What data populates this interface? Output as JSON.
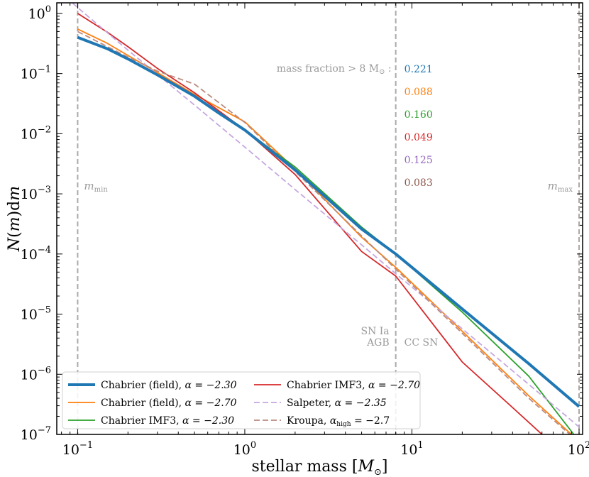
{
  "chart_data": {
    "type": "line",
    "xscale": "log",
    "yscale": "log",
    "xlim": [
      0.075,
      105
    ],
    "ylim": [
      1e-07,
      1.5
    ],
    "xlabel_main": "stellar mass [",
    "xlabel_symbol": "M",
    "xlabel_sub": "⊙",
    "xlabel_end": "]",
    "ylabel_parts": [
      "N",
      "(",
      "m",
      ")d",
      "m"
    ],
    "x_ticks": [
      {
        "value": 0.1,
        "base": "10",
        "exp": "−1"
      },
      {
        "value": 1,
        "base": "10",
        "exp": "0"
      },
      {
        "value": 10,
        "base": "10",
        "exp": "1"
      },
      {
        "value": 100,
        "base": "10",
        "exp": "2"
      }
    ],
    "y_ticks": [
      {
        "value": 1,
        "base": "10",
        "exp": "0"
      },
      {
        "value": 0.1,
        "base": "10",
        "exp": "−1"
      },
      {
        "value": 0.01,
        "base": "10",
        "exp": "−2"
      },
      {
        "value": 0.001,
        "base": "10",
        "exp": "−3"
      },
      {
        "value": 0.0001,
        "base": "10",
        "exp": "−4"
      },
      {
        "value": 1e-05,
        "base": "10",
        "exp": "−5"
      },
      {
        "value": 1e-06,
        "base": "10",
        "exp": "−6"
      },
      {
        "value": 1e-07,
        "base": "10",
        "exp": "−7"
      }
    ],
    "vlines": [
      {
        "x": 0.1,
        "color": "#aaaaaa"
      },
      {
        "x": 8,
        "color": "#aaaaaa"
      },
      {
        "x": 100,
        "color": "#aaaaaa"
      }
    ],
    "annotations": {
      "m_min": {
        "symbol": "m",
        "sub": "min"
      },
      "m_max": {
        "symbol": "m",
        "sub": "max"
      },
      "sn_ia": "SN Ia",
      "agb": "AGB",
      "cc_sn": "CC SN",
      "mass_fraction_label": "mass fraction > 8 M",
      "mass_fraction_sub": "⊙",
      "mass_fraction_colon": " :"
    },
    "mass_fractions": [
      {
        "value": "0.221",
        "color": "#1f77b4"
      },
      {
        "value": "0.088",
        "color": "#ff7f0e"
      },
      {
        "value": "0.160",
        "color": "#2ca02c"
      },
      {
        "value": "0.049",
        "color": "#d62728"
      },
      {
        "value": "0.125",
        "color": "#9467bd"
      },
      {
        "value": "0.083",
        "color": "#8c564b"
      }
    ],
    "series": [
      {
        "name": "Chabrier (field)",
        "alpha_label": "α = −2.30",
        "color": "#1f77b4",
        "dash": "solid",
        "width": "thick",
        "points": [
          [
            0.1,
            0.4
          ],
          [
            0.15,
            0.26
          ],
          [
            0.2,
            0.175
          ],
          [
            0.3,
            0.095
          ],
          [
            0.5,
            0.042
          ],
          [
            0.7,
            0.022
          ],
          [
            1,
            0.0115
          ],
          [
            2,
            0.0025
          ],
          [
            5,
            0.00026
          ],
          [
            8,
            0.0001
          ],
          [
            20,
            1.22e-05
          ],
          [
            50,
            1.5e-06
          ],
          [
            100,
            2.9e-07
          ]
        ]
      },
      {
        "name": "Chabrier (field)",
        "alpha_label": "α = −2.70",
        "color": "#ff7f0e",
        "dash": "solid",
        "width": "normal",
        "points": [
          [
            0.1,
            0.55
          ],
          [
            0.15,
            0.32
          ],
          [
            0.2,
            0.2
          ],
          [
            0.3,
            0.104
          ],
          [
            0.5,
            0.045
          ],
          [
            0.7,
            0.027
          ],
          [
            1,
            0.0158
          ],
          [
            2,
            0.0026
          ],
          [
            5,
            0.00019
          ],
          [
            8,
            6e-05
          ],
          [
            20,
            5.2e-06
          ],
          [
            50,
            4.4e-07
          ],
          [
            90,
            1e-07
          ]
        ]
      },
      {
        "name": "Chabrier IMF3",
        "alpha_label": "α = −2.30",
        "color": "#2ca02c",
        "dash": "solid",
        "width": "normal",
        "points": [
          [
            1,
            0.0115
          ],
          [
            2,
            0.0028
          ],
          [
            5,
            0.00028
          ],
          [
            8,
            0.0001
          ],
          [
            20,
            1.08e-05
          ],
          [
            50,
            9.3e-07
          ],
          [
            93,
            1e-07
          ]
        ]
      },
      {
        "name": "Chabrier IMF3",
        "alpha_label": "α = −2.70",
        "color": "#d62728",
        "dash": "solid",
        "width": "normal",
        "points": [
          [
            0.1,
            1.0
          ],
          [
            0.15,
            0.49
          ],
          [
            0.2,
            0.28
          ],
          [
            0.3,
            0.122
          ],
          [
            0.5,
            0.048
          ],
          [
            0.7,
            0.024
          ],
          [
            1,
            0.0115
          ],
          [
            2,
            0.0021
          ],
          [
            5,
            0.00011
          ],
          [
            8,
            4.3e-05
          ],
          [
            20,
            1.6e-06
          ],
          [
            40,
            2.8e-07
          ],
          [
            60,
            1e-07
          ]
        ]
      },
      {
        "name": "Salpeter",
        "alpha_label": "α = −2.35",
        "color": "#c5a8e0",
        "dash": "dashed",
        "width": "normal",
        "points": [
          [
            0.093,
            1.5
          ],
          [
            0.1,
            1.25
          ],
          [
            0.2,
            0.245
          ],
          [
            0.5,
            0.03
          ],
          [
            1,
            0.006
          ],
          [
            2,
            0.00118
          ],
          [
            5,
            0.000142
          ],
          [
            8,
            4.71e-05
          ],
          [
            20,
            5.7e-06
          ],
          [
            50,
            6.8e-07
          ],
          [
            100,
            1.33e-07
          ]
        ]
      },
      {
        "name": "Kroupa",
        "alpha_label": "α_high = −2.7",
        "color": "#b98b80",
        "dash": "dashed",
        "width": "normal",
        "points": [
          [
            0.1,
            0.5
          ],
          [
            0.2,
            0.188
          ],
          [
            0.3,
            0.11
          ],
          [
            0.5,
            0.0668
          ],
          [
            1,
            0.0154
          ],
          [
            2,
            0.00236
          ],
          [
            5,
            0.0002
          ],
          [
            8,
            5.62e-05
          ],
          [
            20,
            4.8e-06
          ],
          [
            50,
            4e-07
          ],
          [
            88,
            1e-07
          ]
        ]
      }
    ],
    "legend": {
      "placement": "bottom-left",
      "entries": [
        {
          "label": "Chabrier (field), ",
          "alpha": "α = −2.30",
          "series_index": 0
        },
        {
          "label": "Chabrier (field), ",
          "alpha": "α = −2.70",
          "series_index": 1
        },
        {
          "label": "Chabrier IMF3, ",
          "alpha": "α = −2.30",
          "series_index": 2
        },
        {
          "label": "Chabrier IMF3, ",
          "alpha": "α = −2.70",
          "series_index": 3
        },
        {
          "label": "Salpeter, ",
          "alpha": "α = −2.35",
          "series_index": 4
        },
        {
          "label": "Kroupa, ",
          "alpha": "α",
          "alpha_sub": "high",
          "alpha_rest": " = −2.7",
          "series_index": 5
        }
      ]
    }
  }
}
